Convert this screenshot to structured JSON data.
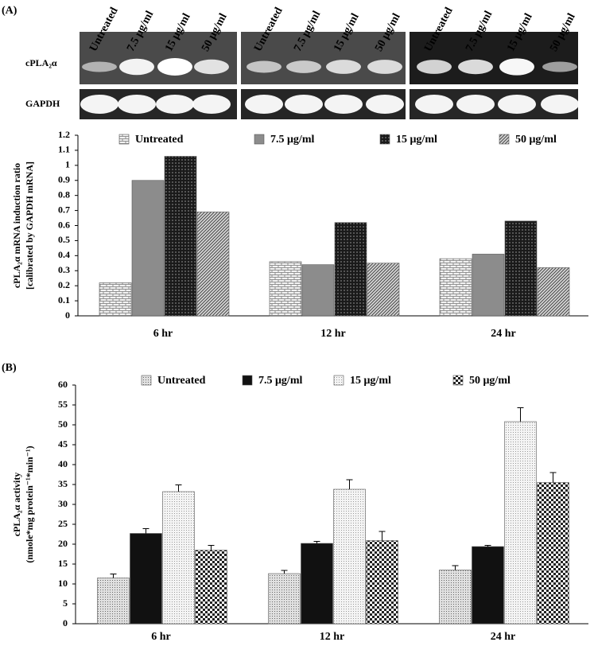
{
  "gel": {
    "lanes": [
      [
        "Untreated",
        "7.5 μg/ml",
        "15 μg/ml",
        "50 μg/ml"
      ],
      [
        "Untreated",
        "7.5 μg/ml",
        "15 μg/ml",
        "50 μg/ml"
      ],
      [
        "Untreated",
        "7.5 μg/ml",
        "15 μg/ml",
        "50 μg/ml"
      ]
    ],
    "rows": [
      "cPLA₂α",
      "GAPDH"
    ]
  },
  "chart_data": [
    {
      "type": "bar",
      "panel_label": "(A)",
      "ylabel": [
        "cPLA₂α mRNA induction ratio",
        "[calibrated by GAPDH mRNA]"
      ],
      "categories": [
        "6 hr",
        "12 hr",
        "24 hr"
      ],
      "series": [
        {
          "name": "Untreated",
          "color": "#e6e6e6",
          "pattern": "brick",
          "values": [
            0.22,
            0.36,
            0.38
          ]
        },
        {
          "name": "7.5 μg/ml",
          "color": "#8c8c8c",
          "values": [
            0.9,
            0.34,
            0.41
          ]
        },
        {
          "name": "15 μg/ml",
          "color": "#262626",
          "pattern": "darkcheck",
          "values": [
            1.06,
            0.62,
            0.63
          ]
        },
        {
          "name": "50 μg/ml",
          "color": "#a0a0a0",
          "pattern": "hatch",
          "values": [
            0.69,
            0.35,
            0.32
          ]
        }
      ],
      "ylim": [
        0,
        1.2
      ],
      "yticks": [
        0,
        0.1,
        0.2,
        0.3,
        0.4,
        0.5,
        0.6,
        0.7,
        0.8,
        0.9,
        1,
        1.1,
        1.2
      ],
      "grid": false
    },
    {
      "type": "bar",
      "panel_label": "(B)",
      "ylabel": [
        "cPLA₂α activity",
        "(nmole*mg protein⁻¹*min⁻¹)"
      ],
      "categories": [
        "6 hr",
        "12 hr",
        "24 hr"
      ],
      "series": [
        {
          "name": "Untreated",
          "color": "#d0d0d0",
          "pattern": "dots",
          "values": [
            11.5,
            12.6,
            13.5
          ],
          "errors": [
            1.0,
            0.8,
            1.1
          ]
        },
        {
          "name": "7.5 μg/ml",
          "color": "#111111",
          "values": [
            22.7,
            20.2,
            19.4
          ],
          "errors": [
            1.2,
            0.5,
            0.3
          ]
        },
        {
          "name": "15 μg/ml",
          "color": "#e8e8e8",
          "pattern": "finedots",
          "values": [
            33.2,
            33.8,
            50.8
          ],
          "errors": [
            1.7,
            2.4,
            3.5
          ]
        },
        {
          "name": "50 μg/ml",
          "color": "#555555",
          "pattern": "check",
          "values": [
            18.5,
            20.9,
            35.5
          ],
          "errors": [
            1.2,
            2.3,
            2.5
          ]
        }
      ],
      "ylim": [
        0,
        60
      ],
      "yticks": [
        0,
        5,
        10,
        15,
        20,
        25,
        30,
        35,
        40,
        45,
        50,
        55,
        60
      ],
      "grid": false
    }
  ]
}
